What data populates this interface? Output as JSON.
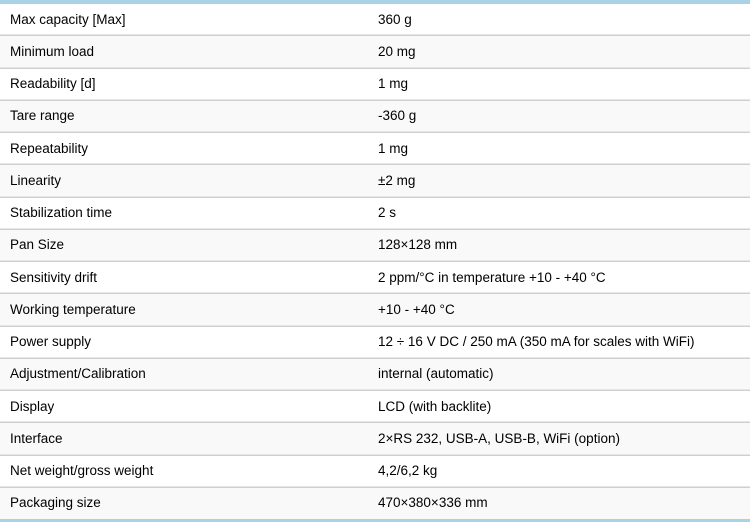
{
  "colors": {
    "top_border_accent": "#4a9ac7",
    "top_border_accent_light": "#a9d2e6",
    "row_bg": "#ffffff",
    "row_alt_bg": "#f9f9f9",
    "row_divider": "#cfcfcf",
    "bottom_border": "#c6c6c6",
    "text": "#000000"
  },
  "spec_table": {
    "rows": [
      {
        "label": "Max capacity [Max]",
        "value": "360 g"
      },
      {
        "label": "Minimum load",
        "value": "20 mg"
      },
      {
        "label": "Readability [d]",
        "value": "1 mg"
      },
      {
        "label": "Tare range",
        "value": "-360 g"
      },
      {
        "label": "Repeatability",
        "value": "1 mg"
      },
      {
        "label": "Linearity",
        "value": "±2 mg"
      },
      {
        "label": "Stabilization time",
        "value": "2 s"
      },
      {
        "label": "Pan Size",
        "value": "128×128 mm"
      },
      {
        "label": "Sensitivity drift",
        "value": "2 ppm/°C in temperature +10 - +40 °C"
      },
      {
        "label": "Working temperature",
        "value": "+10 - +40 °C"
      },
      {
        "label": "Power supply",
        "value": "12 ÷ 16 V DC / 250 mA (350 mA for scales with WiFi)"
      },
      {
        "label": "Adjustment/Calibration",
        "value": "internal (automatic)"
      },
      {
        "label": "Display",
        "value": "LCD (with backlite)"
      },
      {
        "label": "Interface",
        "value": "2×RS 232, USB-A, USB-B, WiFi (option)"
      },
      {
        "label": "Net weight/gross weight",
        "value": "4,2/6,2 kg"
      },
      {
        "label": "Packaging size",
        "value": "470×380×336 mm"
      }
    ]
  }
}
